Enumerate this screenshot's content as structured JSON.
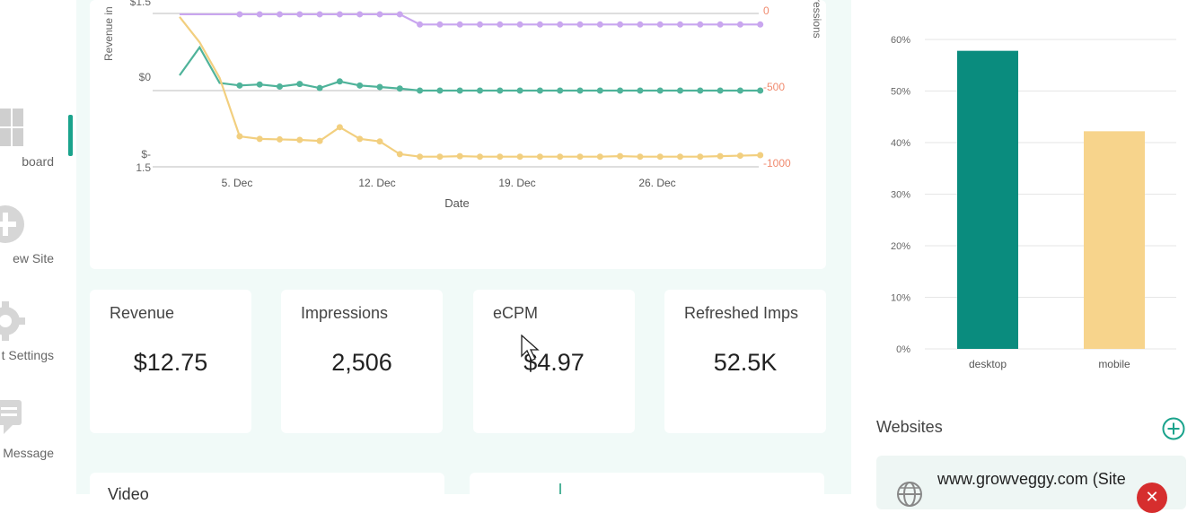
{
  "sidebar": {
    "items": [
      {
        "label": "board",
        "icon": "dashboard-icon",
        "active": true
      },
      {
        "label": "ew Site",
        "icon": "add-site-icon"
      },
      {
        "label": "t Settings",
        "icon": "gear-icon"
      },
      {
        "label": "Message",
        "icon": "message-icon"
      }
    ]
  },
  "colors": {
    "accent": "#1aa38c",
    "teal_series": "#4fb39a",
    "yellow_series": "#f2cf7f",
    "purple_series": "#c9a6ef",
    "red_series": "#f29a94",
    "desktop_bar": "#0a8c7e",
    "mobile_bar": "#f7d48c"
  },
  "line_chart": {
    "y_left_label": "Revenue in",
    "y_right_label": "ressions",
    "left_ticks": [
      "$1.5",
      "$0",
      "$-",
      "1.5"
    ],
    "right_ticks": [
      "0",
      "-500",
      "-1000"
    ],
    "x_label": "Date",
    "x_ticks": [
      "5. Dec",
      "12. Dec",
      "19. Dec",
      "26. Dec"
    ]
  },
  "chart_data": [
    {
      "type": "line",
      "xlabel": "Date",
      "ylabel": "Revenue in",
      "x_ticks": [
        "5. Dec",
        "12. Dec",
        "19. Dec",
        "26. Dec"
      ],
      "x": [
        "2 Dec",
        "3 Dec",
        "4 Dec",
        "5 Dec",
        "6 Dec",
        "7 Dec",
        "8 Dec",
        "9 Dec",
        "10 Dec",
        "11 Dec",
        "12 Dec",
        "13 Dec",
        "14 Dec",
        "15 Dec",
        "16 Dec",
        "17 Dec",
        "18 Dec",
        "19 Dec",
        "20 Dec",
        "21 Dec",
        "22 Dec",
        "23 Dec",
        "24 Dec",
        "25 Dec",
        "26 Dec",
        "27 Dec",
        "28 Dec",
        "29 Dec",
        "30 Dec",
        "31 Dec"
      ],
      "series": [
        {
          "color": "#4fb39a",
          "values": [
            0.3,
            0.85,
            0.15,
            0.1,
            0.12,
            0.08,
            0.13,
            0.05,
            0.18,
            0.1,
            0.07,
            0.04,
            0,
            0,
            0,
            0,
            0,
            0,
            0,
            0,
            0,
            0,
            0,
            0,
            0,
            0,
            0,
            0,
            0,
            0
          ]
        },
        {
          "color": "#f2cf7f",
          "values": [
            1.45,
            0.95,
            0.25,
            -0.9,
            -0.95,
            -0.96,
            -0.97,
            -0.99,
            -0.72,
            -0.95,
            -1.0,
            -1.25,
            -1.3,
            -1.3,
            -1.29,
            -1.3,
            -1.3,
            -1.3,
            -1.3,
            -1.3,
            -1.3,
            -1.3,
            -1.29,
            -1.3,
            -1.3,
            -1.3,
            -1.3,
            -1.29,
            -1.28,
            -1.27
          ]
        },
        {
          "color": "#c9a6ef",
          "values": [
            1.5,
            1.5,
            1.5,
            1.5,
            1.5,
            1.5,
            1.5,
            1.5,
            1.5,
            1.5,
            1.5,
            1.5,
            1.3,
            1.3,
            1.3,
            1.3,
            1.3,
            1.3,
            1.3,
            1.3,
            1.3,
            1.3,
            1.3,
            1.3,
            1.3,
            1.3,
            1.3,
            1.3,
            1.3,
            1.3
          ]
        }
      ],
      "y_right_ticks": [
        "0",
        "-500",
        "-1000"
      ],
      "y_right_label": "ressions"
    },
    {
      "type": "bar",
      "categories": [
        "desktop",
        "mobile"
      ],
      "values": [
        57.8,
        42.2
      ],
      "unit": "%",
      "ylim": [
        0,
        60
      ],
      "y_ticks": [
        "0%",
        "10%",
        "20%",
        "30%",
        "40%",
        "50%",
        "60%"
      ],
      "grid": true
    }
  ],
  "stats": [
    {
      "title": "Revenue",
      "value": "$12.75"
    },
    {
      "title": "Impressions",
      "value": "2,506"
    },
    {
      "title": "eCPM",
      "value": "$4.97"
    },
    {
      "title": "Refreshed Imps",
      "value": "52.5K"
    }
  ],
  "bottom_cards": [
    {
      "title": "Video"
    },
    {
      "title": ""
    }
  ],
  "websites": {
    "title": "Websites",
    "add_icon": "plus-circle-icon",
    "items": [
      {
        "name": "www.growveggy.com (Site",
        "icon": "globe-icon",
        "remove_icon": "close-icon"
      }
    ]
  }
}
